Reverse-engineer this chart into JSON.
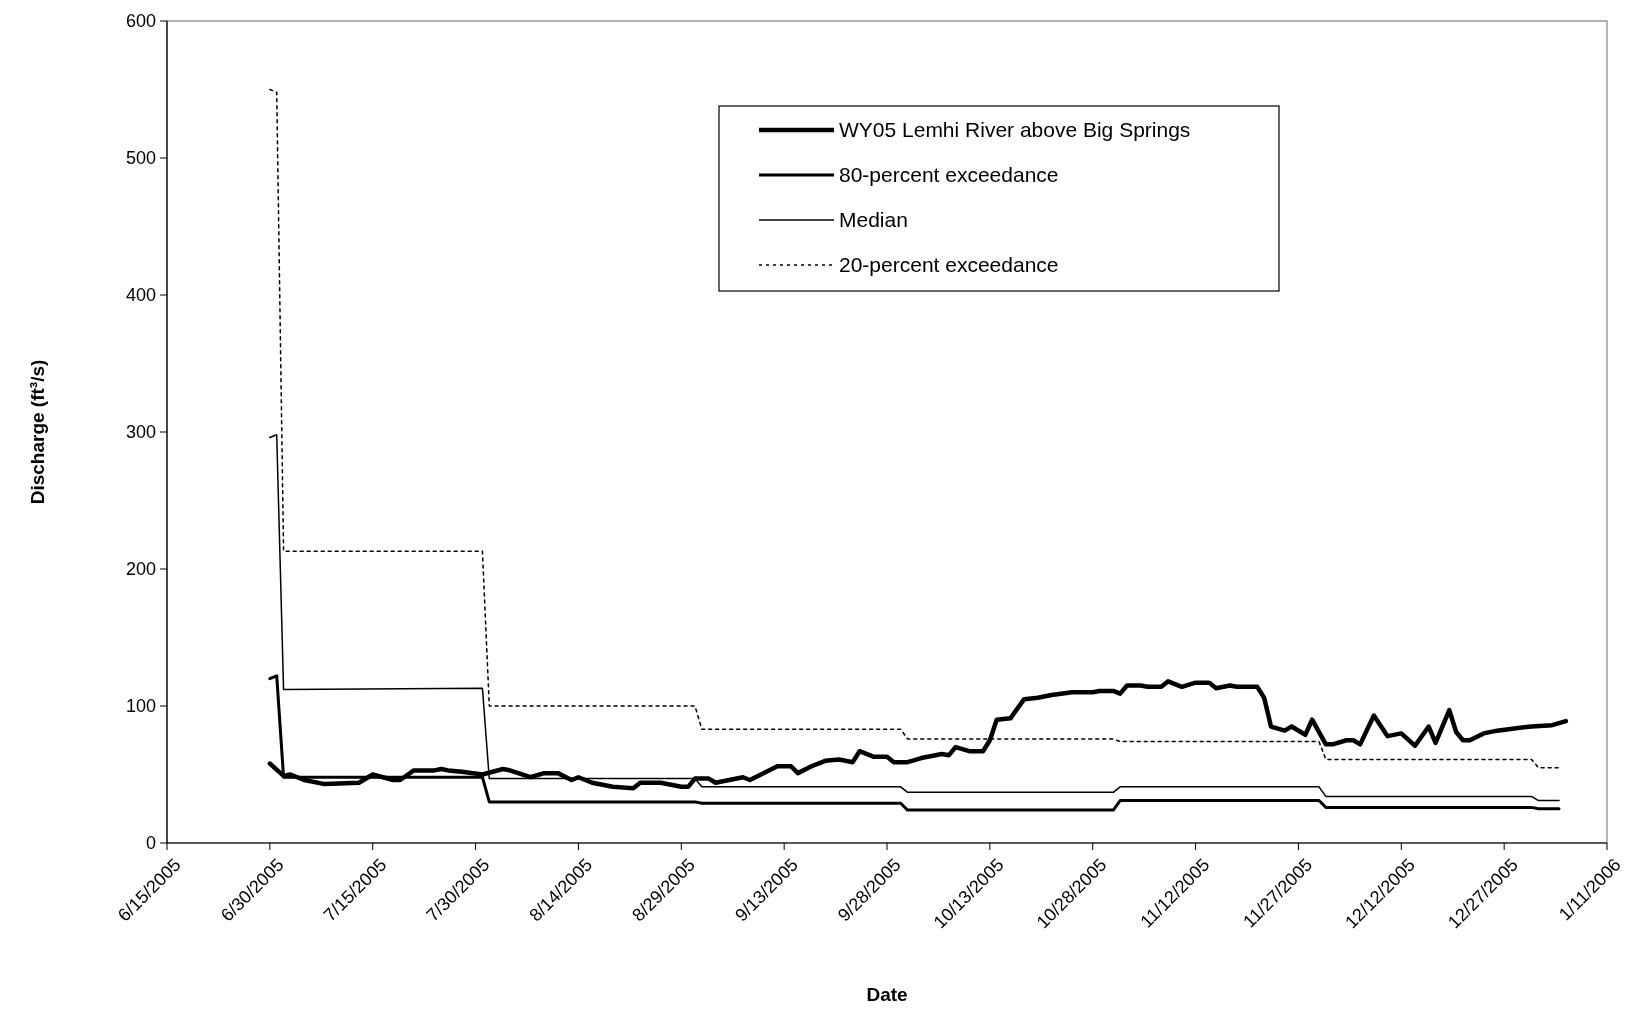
{
  "chart_data": {
    "type": "line",
    "xlabel": "Date",
    "ylabel": "Discharge (ft³/s)",
    "xlim": [
      "2005-06-15",
      "2006-01-11"
    ],
    "xticks": [
      {
        "value": "2005-06-15",
        "label": "6/15/2005"
      },
      {
        "value": "2005-06-30",
        "label": "6/30/2005"
      },
      {
        "value": "2005-07-15",
        "label": "7/15/2005"
      },
      {
        "value": "2005-07-30",
        "label": "7/30/2005"
      },
      {
        "value": "2005-08-14",
        "label": "8/14/2005"
      },
      {
        "value": "2005-08-29",
        "label": "8/29/2005"
      },
      {
        "value": "2005-09-13",
        "label": "9/13/2005"
      },
      {
        "value": "2005-09-28",
        "label": "9/28/2005"
      },
      {
        "value": "2005-10-13",
        "label": "10/13/2005"
      },
      {
        "value": "2005-10-28",
        "label": "10/28/2005"
      },
      {
        "value": "2005-11-12",
        "label": "11/12/2005"
      },
      {
        "value": "2005-11-27",
        "label": "11/27/2005"
      },
      {
        "value": "2005-12-12",
        "label": "12/12/2005"
      },
      {
        "value": "2005-12-27",
        "label": "12/27/2005"
      },
      {
        "value": "2006-01-11",
        "label": "1/11/2006"
      }
    ],
    "ylim": [
      0,
      600
    ],
    "yticks": [
      0,
      100,
      200,
      300,
      400,
      500,
      600
    ],
    "grid": false,
    "legend": "top right",
    "series": [
      {
        "name": "WY05 Lemhi River above Big Springs",
        "color": "#000000",
        "line_style": "solid",
        "x": [
          "2005-06-30",
          "2005-07-02",
          "2005-07-03",
          "2005-07-05",
          "2005-07-08",
          "2005-07-13",
          "2005-07-15",
          "2005-07-18",
          "2005-07-19",
          "2005-07-21",
          "2005-07-24",
          "2005-07-25",
          "2005-07-26",
          "2005-07-28",
          "2005-07-31",
          "2005-08-03",
          "2005-08-04",
          "2005-08-07",
          "2005-08-09",
          "2005-08-11",
          "2005-08-13",
          "2005-08-14",
          "2005-08-16",
          "2005-08-19",
          "2005-08-22",
          "2005-08-23",
          "2005-08-26",
          "2005-08-29",
          "2005-08-30",
          "2005-08-31",
          "2005-09-02",
          "2005-09-03",
          "2005-09-05",
          "2005-09-07",
          "2005-09-08",
          "2005-09-12",
          "2005-09-14",
          "2005-09-15",
          "2005-09-17",
          "2005-09-19",
          "2005-09-21",
          "2005-09-23",
          "2005-09-24",
          "2005-09-26",
          "2005-09-28",
          "2005-09-29",
          "2005-10-01",
          "2005-10-03",
          "2005-10-06",
          "2005-10-07",
          "2005-10-08",
          "2005-10-10",
          "2005-10-12",
          "2005-10-13",
          "2005-10-14",
          "2005-10-16",
          "2005-10-18",
          "2005-10-20",
          "2005-10-22",
          "2005-10-25",
          "2005-10-28",
          "2005-10-29",
          "2005-10-31",
          "2005-11-01",
          "2005-11-02",
          "2005-11-04",
          "2005-11-05",
          "2005-11-07",
          "2005-11-08",
          "2005-11-10",
          "2005-11-12",
          "2005-11-14",
          "2005-11-15",
          "2005-11-17",
          "2005-11-18",
          "2005-11-21",
          "2005-11-22",
          "2005-11-23",
          "2005-11-25",
          "2005-11-26",
          "2005-11-28",
          "2005-11-29",
          "2005-12-01",
          "2005-12-02",
          "2005-12-04",
          "2005-12-05",
          "2005-12-06",
          "2005-12-08",
          "2005-12-10",
          "2005-12-12",
          "2005-12-14",
          "2005-12-16",
          "2005-12-17",
          "2005-12-19",
          "2005-12-20",
          "2005-12-21",
          "2005-12-22",
          "2005-12-24",
          "2005-12-26",
          "2005-12-29",
          "2005-12-31",
          "2006-01-03",
          "2006-01-05"
        ],
        "values": [
          58,
          49,
          50,
          46,
          43,
          44,
          50,
          46,
          46,
          53,
          53,
          54,
          53,
          52,
          50,
          54,
          53,
          48,
          51,
          51,
          46,
          48,
          44,
          41,
          40,
          44,
          44,
          41,
          41,
          47,
          47,
          44,
          46,
          48,
          46,
          56,
          56,
          51,
          56,
          60,
          61,
          59,
          67,
          63,
          63,
          59,
          59,
          62,
          65,
          64,
          70,
          67,
          67,
          75,
          90,
          91,
          105,
          106,
          108,
          110,
          110,
          111,
          111,
          109,
          115,
          115,
          114,
          114,
          118,
          114,
          117,
          117,
          113,
          115,
          114,
          114,
          106,
          85,
          82,
          85,
          79,
          90,
          72,
          72,
          75,
          75,
          72,
          93,
          78,
          80,
          71,
          85,
          73,
          97,
          81,
          75,
          75,
          80,
          82,
          84,
          85,
          86,
          89
        ]
      },
      {
        "name": "80-percent exceedance",
        "color": "#000000",
        "line_style": "solid",
        "x": [
          "2005-06-30",
          "2005-07-01",
          "2005-07-02",
          "2005-07-31",
          "2005-08-01",
          "2005-08-31",
          "2005-09-01",
          "2005-09-30",
          "2005-10-01",
          "2005-10-31",
          "2005-11-01",
          "2005-11-30",
          "2005-12-01",
          "2005-12-31",
          "2006-01-01",
          "2006-01-04"
        ],
        "values": [
          120,
          122,
          48,
          48,
          30,
          30,
          29,
          29,
          24,
          24,
          31,
          31,
          26,
          26,
          25,
          25
        ]
      },
      {
        "name": "Median",
        "color": "#000000",
        "line_style": "solid",
        "x": [
          "2005-06-30",
          "2005-07-01",
          "2005-07-02",
          "2005-07-31",
          "2005-08-01",
          "2005-08-31",
          "2005-09-01",
          "2005-09-30",
          "2005-10-01",
          "2005-10-31",
          "2005-11-01",
          "2005-11-30",
          "2005-12-01",
          "2005-12-31",
          "2006-01-01",
          "2006-01-04"
        ],
        "values": [
          296,
          298,
          112,
          113,
          47,
          47,
          41,
          41,
          37,
          37,
          41,
          41,
          34,
          34,
          31,
          31
        ]
      },
      {
        "name": "20-percent exceedance",
        "color": "#000000",
        "line_style": "dotted",
        "x": [
          "2005-06-30",
          "2005-07-01",
          "2005-07-02",
          "2005-07-31",
          "2005-08-01",
          "2005-08-31",
          "2005-09-01",
          "2005-09-30",
          "2005-10-01",
          "2005-10-31",
          "2005-11-01",
          "2005-11-30",
          "2005-12-01",
          "2005-12-31",
          "2006-01-01",
          "2006-01-04"
        ],
        "values": [
          550,
          548,
          213,
          213,
          100,
          100,
          83,
          83,
          76,
          76,
          74,
          74,
          61,
          61,
          55,
          55
        ]
      }
    ]
  }
}
